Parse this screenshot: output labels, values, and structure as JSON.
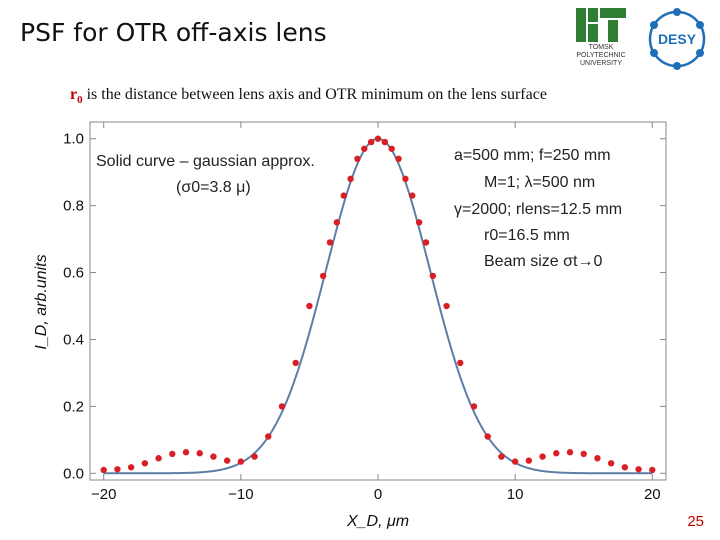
{
  "slide": {
    "title": "PSF for OTR off-axis lens",
    "subtitle_symbol": "r",
    "subtitle_symbol_sub": "0",
    "subtitle_text": " is the distance between lens axis and OTR minimum on the lens surface",
    "page_number": "25",
    "tpu_logo_text": [
      "TOMSK",
      "POLYTECHNIC",
      "UNIVERSITY"
    ],
    "desy_logo_text": "DESY",
    "colors": {
      "title": "#111111",
      "accent": "#c00000",
      "tpu_green": "#2e7d32",
      "desy_blue": "#1e6fb8"
    }
  },
  "chart_data": {
    "type": "scatter",
    "xlabel": "X_D, μm",
    "ylabel": "I_D, arb.units",
    "xlim": [
      -21,
      21
    ],
    "ylim": [
      -0.02,
      1.05
    ],
    "x_ticks": [
      -20,
      -10,
      0,
      10,
      20
    ],
    "y_ticks": [
      0.0,
      0.2,
      0.4,
      0.6,
      0.8,
      1.0
    ],
    "x_tick_labels": [
      "−20",
      "−10",
      "0",
      "10",
      "20"
    ],
    "y_tick_labels": [
      "0.0",
      "0.2",
      "0.4",
      "0.6",
      "0.8",
      "1.0"
    ],
    "grid": false,
    "annotations_left": [
      "Solid curve – gaussian approx.",
      "(σ0=3.8 μ)"
    ],
    "annotations_right": [
      "a=500 mm; f=250 mm",
      "M=1; λ=500 nm",
      "γ=2000; rlens=12.5 mm",
      "r0=16.5 mm",
      "Beam size σt→0"
    ],
    "series": [
      {
        "kind": "points",
        "color": "#d91f26",
        "x": [
          -20,
          -19,
          -18,
          -17,
          -16,
          -15,
          -14,
          -13,
          -12,
          -11,
          -10,
          -9,
          -8,
          -7,
          -6,
          -5,
          -4,
          -3.5,
          -3,
          -2.5,
          -2,
          -1.5,
          -1,
          -0.5,
          0,
          0.5,
          1,
          1.5,
          2,
          2.5,
          3,
          3.5,
          4,
          5,
          6,
          7,
          8,
          9,
          10,
          11,
          12,
          13,
          14,
          15,
          16,
          17,
          18,
          19,
          20
        ],
        "y": [
          0.01,
          0.012,
          0.018,
          0.03,
          0.045,
          0.058,
          0.063,
          0.06,
          0.05,
          0.038,
          0.035,
          0.05,
          0.11,
          0.2,
          0.33,
          0.5,
          0.59,
          0.69,
          0.75,
          0.83,
          0.88,
          0.94,
          0.97,
          0.99,
          1.0,
          0.99,
          0.97,
          0.94,
          0.88,
          0.83,
          0.75,
          0.69,
          0.59,
          0.5,
          0.33,
          0.2,
          0.11,
          0.05,
          0.035,
          0.038,
          0.05,
          0.06,
          0.063,
          0.058,
          0.045,
          0.03,
          0.018,
          0.012,
          0.01
        ]
      },
      {
        "kind": "curve",
        "name": "gaussian approx.",
        "color": "#5b7fa6",
        "sigma": 3.8
      }
    ]
  }
}
